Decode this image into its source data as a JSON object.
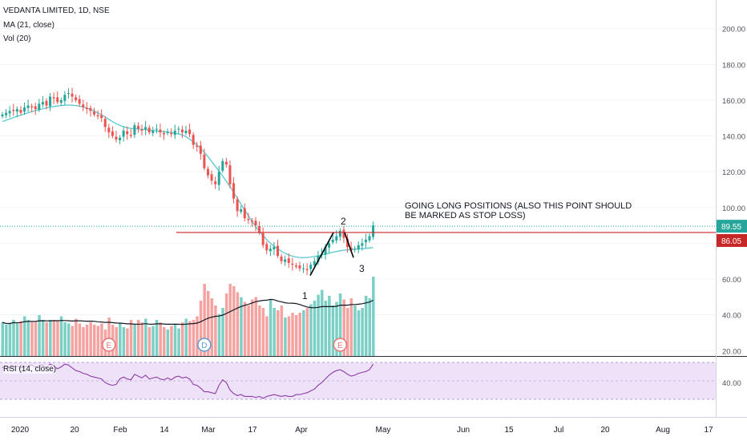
{
  "header": {
    "symbol_title": "VEDANTA LIMITED, 1D, NSE",
    "ma_label": "MA (21, close)",
    "vol_label": "Vol (20)"
  },
  "rsi_panel": {
    "label": "RSI (14, close)",
    "tick_label": "40.00"
  },
  "colors": {
    "up": "#26a69a",
    "down": "#ef5350",
    "up_vol": "#7ccfc5",
    "down_vol": "#f4a3a1",
    "ma": "#5bc8d0",
    "vol_ma": "#131722",
    "rsi_line": "#8e3ca6",
    "rsi_band": "#ede2f7",
    "price_line": "#26a69a",
    "stoploss_line": "#c62828",
    "trend_lines": "#000000",
    "event_marker": "#e57373",
    "dividend_marker": "#5b9bd5"
  },
  "annotations": {
    "text": [
      "GOING LONG POSITIONS (ALSO THIS POINT SHOULD",
      "BE MARKED AS STOP LOSS)"
    ],
    "point1": "1",
    "point2": "2",
    "point3": "3"
  },
  "badges": {
    "last_price": "89.55",
    "stop_loss": "86.05"
  },
  "events": [
    {
      "date_index": 29,
      "label": "E",
      "type": "earnings"
    },
    {
      "date_index": 55,
      "label": "D",
      "type": "dividend"
    },
    {
      "date_index": 92,
      "label": "E",
      "type": "earnings"
    }
  ],
  "chart_data": {
    "type": "candlestick",
    "title": "VEDANTA LIMITED, 1D, NSE",
    "y_axis": {
      "ticks": [
        "200.00",
        "180.00",
        "160.00",
        "140.00",
        "120.00",
        "100.00",
        "80.00",
        "60.00",
        "40.00",
        "20.00"
      ],
      "range": [
        17,
        216
      ]
    },
    "x_axis": {
      "ticks": [
        "2020",
        "20",
        "Feb",
        "14",
        "Mar",
        "17",
        "Apr",
        "May",
        "Jun",
        "15",
        "Jul",
        "20",
        "Aug",
        "17"
      ]
    },
    "series": [
      {
        "name": "price",
        "kind": "ohlc",
        "close": [
          152,
          153,
          154,
          154,
          155,
          153,
          156,
          157,
          156,
          155,
          158,
          159,
          157,
          162,
          161,
          159,
          160,
          163,
          164,
          162,
          160,
          158,
          156,
          155,
          154,
          152,
          151,
          150,
          145,
          142,
          140,
          138,
          139,
          143,
          141,
          140,
          146,
          144,
          143,
          145,
          142,
          143,
          144,
          142,
          141,
          142,
          141,
          143,
          144,
          142,
          143,
          141,
          135,
          134,
          130,
          122,
          118,
          115,
          113,
          120,
          126,
          124,
          113,
          105,
          98,
          99,
          94,
          93,
          92,
          90,
          86,
          79,
          76,
          77,
          78,
          73,
          70,
          71,
          69,
          68,
          67,
          66,
          66,
          65,
          68,
          70,
          73,
          74,
          78,
          80,
          82,
          84,
          87,
          83,
          78,
          76,
          77,
          79,
          80,
          82,
          84,
          90
        ]
      },
      {
        "name": "MA (21, close)",
        "kind": "line",
        "values": [
          148,
          148.8,
          149.5,
          150.3,
          151,
          151.6,
          152.3,
          153,
          153.6,
          154.2,
          154.7,
          155.2,
          155.7,
          156.1,
          156.5,
          156.8,
          157,
          157.2,
          157.3,
          157.2,
          157,
          156.7,
          156.2,
          155.6,
          154.8,
          153.9,
          152.9,
          151.8,
          150.6,
          149.3,
          148,
          146.9,
          145.9,
          145.2,
          144.6,
          144.2,
          144,
          143.9,
          143.7,
          143.6,
          143.3,
          143,
          142.8,
          142.6,
          142.4,
          142.2,
          142,
          141.6,
          141.1,
          140.6,
          139.6,
          138.2,
          136.7,
          135,
          133,
          130.8,
          128.4,
          125.8,
          123.1,
          120.4,
          117.6,
          114.6,
          111.7,
          108.5,
          105.2,
          101.9,
          98.6,
          95.4,
          92.3,
          89.4,
          86.7,
          84.3,
          82.1,
          80.1,
          78.4,
          76.9,
          75.6,
          74.4,
          73.5,
          72.8,
          72.3,
          72.1,
          72,
          72.1,
          72.3,
          72.6,
          73,
          73.5,
          74,
          74.5,
          75,
          75.4,
          75.8,
          76.1,
          76.3,
          76.5,
          76.7,
          76.8,
          77,
          77.2,
          77.4,
          77.6
        ]
      },
      {
        "name": "Vol (20)",
        "kind": "volume",
        "values": [
          28,
          26,
          27,
          30,
          27,
          29,
          33,
          30,
          29,
          29,
          34,
          30,
          28,
          30,
          30,
          29,
          33,
          28,
          27,
          25,
          31,
          27,
          24,
          26,
          28,
          26,
          25,
          27,
          22,
          32,
          26,
          24,
          27,
          24,
          23,
          30,
          26,
          30,
          28,
          31,
          24,
          25,
          30,
          28,
          24,
          22,
          25,
          27,
          23,
          28,
          31,
          29,
          30,
          33,
          46,
          60,
          54,
          48,
          42,
          35,
          40,
          52,
          60,
          58,
          53,
          49,
          45,
          42,
          47,
          49,
          42,
          40,
          33,
          47,
          40,
          38,
          42,
          32,
          33,
          36,
          34,
          36,
          38,
          40,
          43,
          46,
          51,
          55,
          46,
          50,
          42,
          45,
          52,
          47,
          40,
          48,
          42,
          38,
          40,
          50,
          48,
          66
        ]
      },
      {
        "name": "RSI (14, close)",
        "kind": "line",
        "values": [
          56,
          58,
          55,
          57,
          58,
          56,
          57,
          58,
          59,
          57,
          58,
          59,
          56,
          60,
          58,
          55,
          57,
          60,
          59,
          56,
          53,
          52,
          50,
          49,
          47,
          46,
          45,
          44,
          40,
          38,
          37,
          38,
          44,
          46,
          44,
          43,
          49,
          47,
          45,
          48,
          44,
          45,
          46,
          44,
          43,
          45,
          43,
          46,
          47,
          45,
          46,
          44,
          38,
          37,
          34,
          30,
          30,
          29,
          28,
          37,
          43,
          40,
          32,
          28,
          26,
          27,
          25,
          25,
          25,
          24,
          25,
          23,
          25,
          26,
          27,
          26,
          25,
          26,
          25,
          25,
          27,
          27,
          28,
          29,
          31,
          33,
          37,
          40,
          44,
          48,
          51,
          53,
          54,
          52,
          49,
          47,
          48,
          50,
          51,
          52,
          54,
          60
        ]
      }
    ],
    "markers": {
      "stop_loss_level": 86.05,
      "last_price": 89.55
    }
  }
}
